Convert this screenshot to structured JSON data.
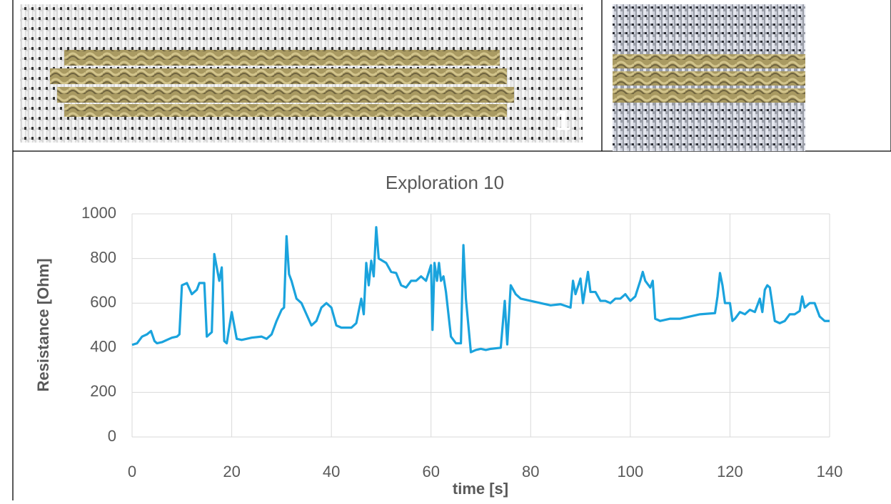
{
  "figure": {
    "photo_label": "1"
  },
  "chart_data": {
    "type": "line",
    "title": "Exploration 10",
    "x_label": "time [s]",
    "y_label": "Resistance [Ohm]",
    "x": [
      0,
      1,
      2,
      3,
      3.8,
      4.5,
      5,
      6,
      7,
      8,
      9,
      9.5,
      10,
      11,
      12,
      13,
      13.5,
      14.5,
      15,
      16,
      16.5,
      17,
      17.5,
      18,
      18.5,
      19,
      20,
      21,
      22,
      24,
      26,
      27,
      28,
      29,
      30,
      30.5,
      31,
      31.5,
      32,
      33,
      34,
      35,
      36,
      37,
      38,
      39,
      40,
      41,
      42,
      44,
      45,
      46,
      46.5,
      47,
      47.5,
      48,
      48.5,
      49,
      49.5,
      51,
      52,
      53,
      54,
      55,
      56,
      57,
      58,
      59,
      60,
      60.3,
      60.7,
      61.2,
      61.6,
      62,
      62.5,
      63,
      64,
      65,
      66,
      66.5,
      67,
      68,
      69,
      70,
      71,
      72,
      74,
      74.8,
      75.3,
      76,
      77,
      78,
      80,
      82,
      84,
      86,
      88,
      88.5,
      89,
      90,
      90.5,
      91.5,
      92,
      93,
      94,
      95,
      96,
      97,
      98,
      99,
      100,
      101,
      102,
      102.5,
      103,
      104,
      104.5,
      105,
      106,
      108,
      110,
      112,
      114,
      117,
      117.5,
      118,
      118.5,
      119,
      120,
      120.5,
      121,
      122,
      123,
      124,
      125,
      126,
      126.5,
      127,
      127.5,
      128,
      129,
      130,
      131,
      132,
      133,
      134,
      134.5,
      135,
      136,
      137,
      138,
      139,
      140
    ],
    "values": [
      413,
      420,
      450,
      460,
      475,
      430,
      420,
      425,
      435,
      445,
      450,
      460,
      680,
      690,
      640,
      660,
      690,
      690,
      450,
      470,
      820,
      760,
      700,
      760,
      430,
      420,
      560,
      440,
      435,
      445,
      450,
      440,
      460,
      520,
      570,
      580,
      900,
      730,
      700,
      620,
      600,
      550,
      500,
      520,
      580,
      600,
      580,
      500,
      490,
      490,
      510,
      620,
      550,
      780,
      680,
      790,
      720,
      940,
      800,
      780,
      740,
      735,
      680,
      670,
      700,
      700,
      720,
      700,
      770,
      480,
      780,
      700,
      780,
      700,
      720,
      650,
      450,
      420,
      420,
      860,
      620,
      380,
      390,
      395,
      390,
      395,
      400,
      610,
      415,
      680,
      640,
      620,
      610,
      600,
      590,
      595,
      580,
      700,
      640,
      710,
      600,
      740,
      650,
      650,
      610,
      610,
      600,
      620,
      620,
      640,
      610,
      630,
      700,
      740,
      700,
      670,
      700,
      530,
      520,
      530,
      530,
      540,
      550,
      555,
      630,
      735,
      680,
      600,
      600,
      520,
      530,
      560,
      550,
      570,
      560,
      620,
      560,
      660,
      680,
      670,
      520,
      510,
      520,
      550,
      550,
      565,
      630,
      580,
      600,
      600,
      540,
      520,
      520
    ],
    "color": "#1aa3dd",
    "xlim": [
      0,
      140
    ],
    "xticks": [
      0,
      20,
      40,
      60,
      80,
      100,
      120,
      140
    ],
    "ylim": [
      0,
      1000
    ],
    "yticks": [
      0,
      200,
      400,
      600,
      800,
      1000
    ],
    "grid": true
  }
}
